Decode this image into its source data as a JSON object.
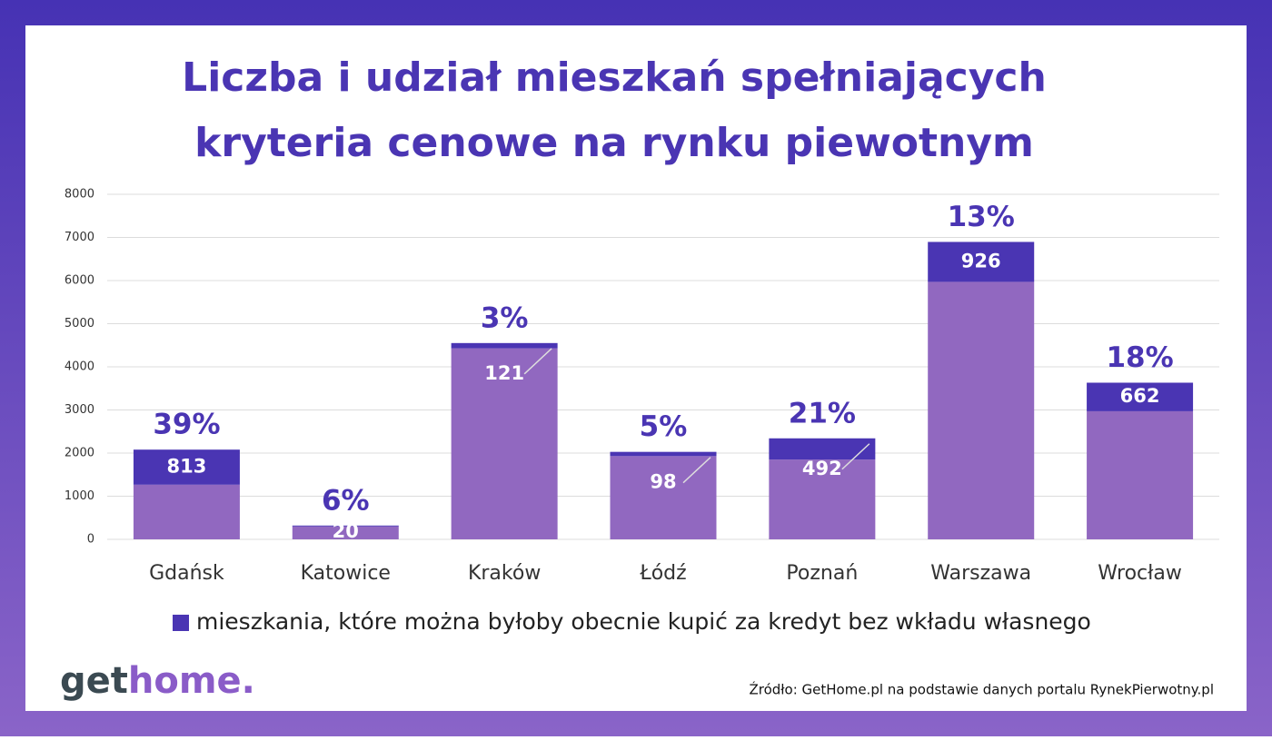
{
  "chart_data": {
    "type": "stacked_bar",
    "title": [
      "Liczba i udział mieszkań spełniających",
      "kryteria cenowe na rynku piewotnym"
    ],
    "categories": [
      "Gdańsk",
      "Katowice",
      "Kraków",
      "Łódź",
      "Poznań",
      "Warszawa",
      "Wrocław"
    ],
    "series": [
      {
        "color": "#9168c0",
        "values": [
          1267,
          300,
          4430,
          1930,
          1850,
          5970,
          2970
        ]
      },
      {
        "name": "mieszkania, które można byłoby obecnie kupić za kredyt bez wkładu własnego",
        "color": "#4a35b3",
        "values": [
          813,
          20,
          121,
          98,
          492,
          926,
          662
        ]
      }
    ],
    "shares": {
      "values": [
        39,
        6,
        3,
        5,
        21,
        13,
        18
      ],
      "value_labels": [
        "39%",
        "6%",
        "3%",
        "5%",
        "21%",
        "13%",
        "18%"
      ]
    },
    "ylim": [
      0,
      8000
    ],
    "yticks": [
      0,
      1000,
      2000,
      3000,
      4000,
      5000,
      6000,
      7000,
      8000
    ],
    "grid": true,
    "logo": [
      "get",
      "home."
    ],
    "source": "Źródło: GetHome.pl na podstawie danych portalu RynekPierwotny.pl"
  }
}
